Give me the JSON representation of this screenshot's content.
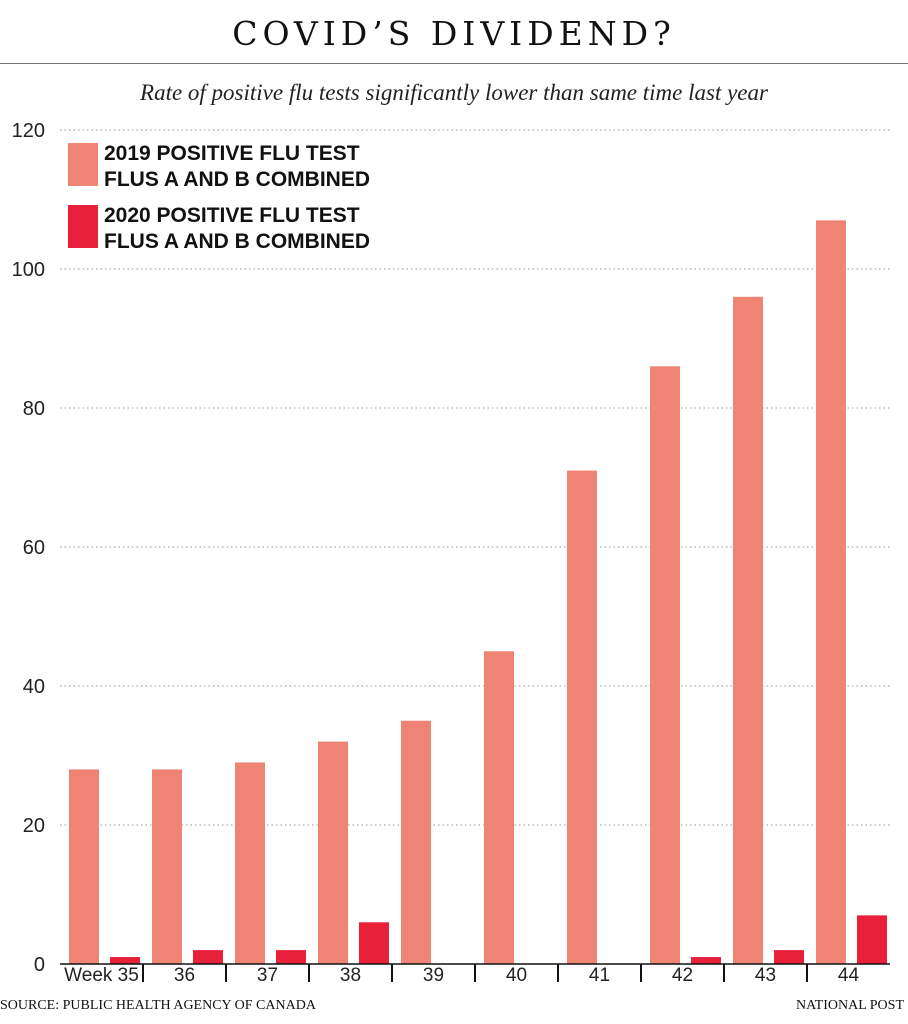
{
  "header": {
    "title": "COVID’S DIVIDEND?",
    "subtitle": "Rate of positive flu tests significantly lower than same time last year"
  },
  "footer": {
    "source": "SOURCE: PUBLIC HEALTH AGENCY OF CANADA",
    "credit": "NATIONAL POST"
  },
  "colors": {
    "series_2019": "#f08474",
    "series_2020": "#e8203a",
    "grid": "#999999"
  },
  "chart_data": {
    "type": "bar",
    "title": "COVID’S DIVIDEND?",
    "subtitle": "Rate of positive flu tests significantly lower than same time last year",
    "xlabel": "",
    "ylabel": "",
    "categories": [
      "Week 35",
      "36",
      "37",
      "38",
      "39",
      "40",
      "41",
      "42",
      "43",
      "44"
    ],
    "series": [
      {
        "name": "2019 POSITIVE FLU TEST FLUS A AND B COMBINED",
        "legend_lines": [
          "2019 POSITIVE FLU TEST",
          "FLUS A AND B COMBINED"
        ],
        "values": [
          28,
          28,
          29,
          32,
          35,
          45,
          71,
          86,
          96,
          107
        ]
      },
      {
        "name": "2020 POSITIVE FLU TEST FLUS A AND B COMBINED",
        "legend_lines": [
          "2020 POSITIVE FLU TEST",
          "FLUS A AND B COMBINED"
        ],
        "values": [
          1,
          2,
          2,
          6,
          0,
          0,
          0,
          1,
          2,
          7
        ]
      }
    ],
    "ylim": [
      0,
      120
    ],
    "yticks": [
      0,
      20,
      40,
      60,
      80,
      100,
      120
    ],
    "grid": true,
    "legend": "top-left"
  }
}
